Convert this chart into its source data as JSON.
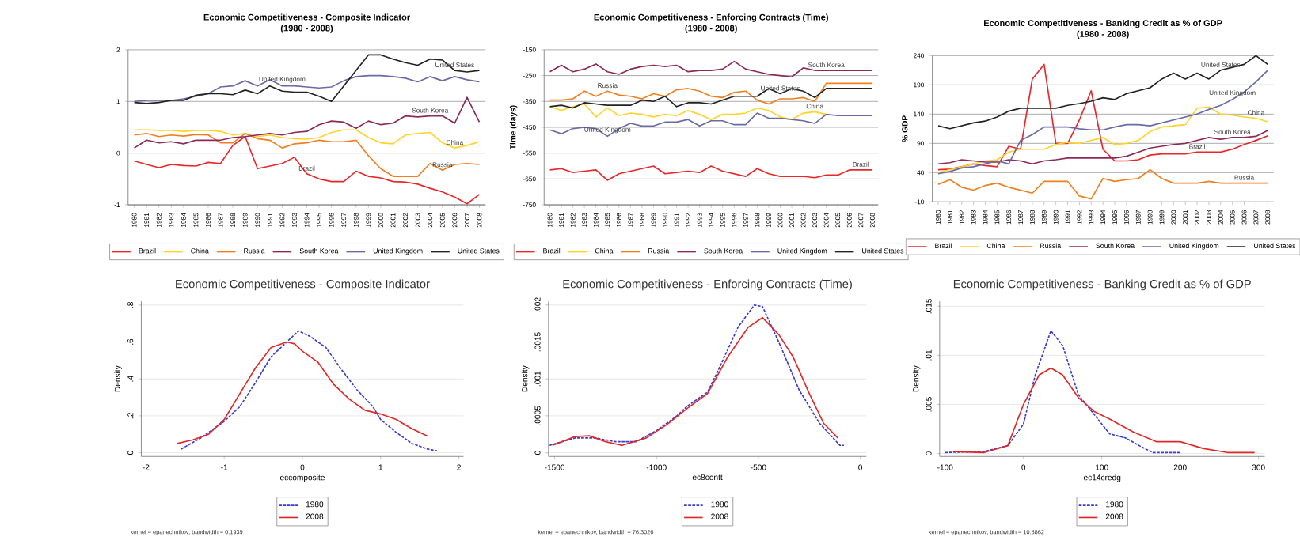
{
  "chart_data": [
    {
      "type": "line",
      "title": "Economic Competitiveness - Composite Indicator",
      "subtitle": "(1980 - 2008)",
      "categories": [
        "1980",
        "1981",
        "1982",
        "1983",
        "1984",
        "1985",
        "1986",
        "1987",
        "1988",
        "1989",
        "1990",
        "1991",
        "1992",
        "1993",
        "1994",
        "1995",
        "1996",
        "1997",
        "1998",
        "1999",
        "2000",
        "2001",
        "2002",
        "2003",
        "2004",
        "2005",
        "2006",
        "2007",
        "2008"
      ],
      "ylim": [
        -1,
        2
      ],
      "yticks": [
        -1,
        0,
        1,
        2
      ],
      "grid": "y",
      "legend": "bottom",
      "marker": "none",
      "series": [
        {
          "name": "Brazil",
          "color": "#e8272a",
          "values": [
            -0.15,
            -0.22,
            -0.28,
            -0.22,
            -0.24,
            -0.25,
            -0.18,
            -0.2,
            0.15,
            0.32,
            -0.3,
            -0.25,
            -0.2,
            -0.08,
            -0.4,
            -0.5,
            -0.55,
            -0.55,
            -0.35,
            -0.45,
            -0.48,
            -0.55,
            -0.56,
            -0.6,
            -0.68,
            -0.75,
            -0.85,
            -0.98,
            -0.8
          ]
        },
        {
          "name": "China",
          "color": "#ffd42a",
          "values": [
            0.45,
            0.45,
            0.44,
            0.44,
            0.42,
            0.44,
            0.44,
            0.42,
            0.35,
            0.38,
            0.32,
            0.35,
            0.3,
            0.28,
            0.27,
            0.3,
            0.4,
            0.45,
            0.45,
            0.3,
            0.2,
            0.18,
            0.35,
            0.38,
            0.4,
            0.2,
            0.1,
            0.15,
            0.22
          ]
        },
        {
          "name": "Russia",
          "color": "#f07f22",
          "values": [
            0.35,
            0.38,
            0.32,
            0.35,
            0.33,
            0.36,
            0.35,
            0.2,
            0.2,
            0.38,
            0.28,
            0.25,
            0.1,
            0.18,
            0.2,
            0.25,
            0.22,
            0.22,
            0.25,
            -0.05,
            -0.3,
            -0.45,
            -0.45,
            -0.45,
            -0.2,
            -0.33,
            -0.22,
            -0.2,
            -0.22
          ]
        },
        {
          "name": "South Korea",
          "color": "#8b2a5a",
          "values": [
            0.1,
            0.25,
            0.2,
            0.22,
            0.18,
            0.25,
            0.25,
            0.25,
            0.3,
            0.32,
            0.35,
            0.38,
            0.35,
            0.4,
            0.42,
            0.55,
            0.62,
            0.6,
            0.48,
            0.62,
            0.55,
            0.58,
            0.72,
            0.7,
            0.72,
            0.72,
            0.58,
            1.08,
            0.6
          ]
        },
        {
          "name": "United Kingdom",
          "color": "#6a6aa8",
          "values": [
            1.0,
            1.02,
            1.02,
            1.02,
            1.05,
            1.1,
            1.15,
            1.28,
            1.3,
            1.4,
            1.3,
            1.42,
            1.3,
            1.3,
            1.28,
            1.26,
            1.28,
            1.4,
            1.48,
            1.5,
            1.5,
            1.48,
            1.45,
            1.38,
            1.48,
            1.4,
            1.48,
            1.42,
            1.38
          ]
        },
        {
          "name": "United States",
          "color": "#222222",
          "values": [
            0.98,
            0.96,
            0.98,
            1.02,
            1.02,
            1.12,
            1.15,
            1.15,
            1.13,
            1.22,
            1.15,
            1.3,
            1.2,
            1.18,
            1.18,
            1.1,
            1.0,
            1.3,
            1.6,
            1.9,
            1.9,
            1.82,
            1.75,
            1.7,
            1.82,
            1.8,
            1.6,
            1.57,
            1.6
          ]
        }
      ],
      "annotations": [
        {
          "text": "United States",
          "x": "2006",
          "y": 1.6
        },
        {
          "text": "United Kingdom",
          "x": "1992",
          "y": 1.3
        },
        {
          "text": "South Korea",
          "x": "2004",
          "y": 0.72
        },
        {
          "text": "China",
          "x": "2006",
          "y": 0.1
        },
        {
          "text": "Russia",
          "x": "2005",
          "y": -0.33
        },
        {
          "text": "Brazil",
          "x": "1994",
          "y": -0.4
        }
      ]
    },
    {
      "type": "line",
      "title": "Economic Competitiveness - Enforcing Contracts (Time)",
      "subtitle": "(1980 - 2008)",
      "ylabel": "Time (days)",
      "categories": [
        "1980",
        "1981",
        "1982",
        "1983",
        "1984",
        "1985",
        "1986",
        "1987",
        "1988",
        "1989",
        "1990",
        "1991",
        "1992",
        "1993",
        "1994",
        "1995",
        "1996",
        "1997",
        "1998",
        "1999",
        "2000",
        "2001",
        "2002",
        "2003",
        "2004",
        "2005",
        "2006",
        "2007",
        "2008"
      ],
      "ylim": [
        -750,
        -150
      ],
      "yticks": [
        -750,
        -650,
        -550,
        -450,
        -350,
        -250,
        -150
      ],
      "grid": "y",
      "legend": "bottom",
      "marker": "none",
      "series": [
        {
          "name": "Brazil",
          "color": "#e8272a",
          "values": [
            -615,
            -610,
            -625,
            -620,
            -615,
            -655,
            -630,
            -620,
            -610,
            -600,
            -630,
            -625,
            -620,
            -625,
            -600,
            -620,
            -630,
            -640,
            -610,
            -630,
            -640,
            -640,
            -640,
            -645,
            -635,
            -635,
            -615,
            -615,
            -615
          ]
        },
        {
          "name": "China",
          "color": "#ffd42a",
          "values": [
            -370,
            -385,
            -370,
            -360,
            -410,
            -375,
            -405,
            -395,
            -400,
            -410,
            -400,
            -405,
            -385,
            -400,
            -420,
            -400,
            -400,
            -395,
            -375,
            -385,
            -410,
            -420,
            -395,
            -390,
            -400,
            null,
            null,
            null,
            null
          ]
        },
        {
          "name": "Russia",
          "color": "#f07f22",
          "values": [
            -345,
            -345,
            -340,
            -310,
            -330,
            -310,
            -325,
            -330,
            -340,
            -320,
            -330,
            -305,
            -300,
            -310,
            -330,
            -335,
            -315,
            -310,
            -345,
            -360,
            -340,
            -340,
            -335,
            -350,
            -280,
            -280,
            -280,
            -280,
            -280
          ]
        },
        {
          "name": "South Korea",
          "color": "#8b2a5a",
          "values": [
            -235,
            -210,
            -235,
            -225,
            -205,
            -235,
            -245,
            -225,
            -215,
            -210,
            -215,
            -210,
            -235,
            -230,
            -230,
            -225,
            -195,
            -225,
            -235,
            -245,
            -250,
            -255,
            -220,
            -230,
            -230,
            -230,
            -230,
            -230,
            -230
          ]
        },
        {
          "name": "United Kingdom",
          "color": "#6a6aa8",
          "values": [
            -460,
            -475,
            -455,
            -450,
            -455,
            -485,
            -455,
            -435,
            -445,
            -445,
            -430,
            -430,
            -420,
            -445,
            -425,
            -425,
            -440,
            -440,
            -395,
            -415,
            -415,
            -420,
            -425,
            -435,
            -400,
            -405,
            -405,
            -405,
            -405
          ]
        },
        {
          "name": "United States",
          "color": "#222222",
          "values": [
            -370,
            -365,
            -375,
            -355,
            -360,
            -365,
            -365,
            -365,
            -345,
            -350,
            -330,
            -370,
            -355,
            -355,
            -360,
            -345,
            -330,
            -330,
            -330,
            -300,
            -320,
            -300,
            -310,
            -335,
            -300,
            -300,
            -300,
            -300,
            -300
          ]
        }
      ],
      "annotations": [
        {
          "text": "South Korea",
          "x": "2004",
          "y": -230
        },
        {
          "text": "Russia",
          "x": "1985",
          "y": -310
        },
        {
          "text": "United States",
          "x": "2000",
          "y": -320
        },
        {
          "text": "China",
          "x": "2003",
          "y": -390
        },
        {
          "text": "United Kingdom",
          "x": "1985",
          "y": -485
        },
        {
          "text": "Brazil",
          "x": "2007",
          "y": -615
        }
      ]
    },
    {
      "type": "line",
      "title": "Economic Competitiveness - Banking Credit as % of GDP",
      "subtitle": "(1980 - 2008)",
      "ylabel": "% GDP",
      "categories": [
        "1980",
        "1981",
        "1982",
        "1983",
        "1984",
        "1985",
        "1986",
        "1987",
        "1988",
        "1989",
        "1990",
        "1991",
        "1992",
        "1993",
        "1994",
        "1995",
        "1996",
        "1997",
        "1998",
        "1999",
        "2000",
        "2001",
        "2002",
        "2003",
        "2004",
        "2005",
        "2006",
        "2007",
        "2008"
      ],
      "ylim": [
        -10,
        240
      ],
      "yticks": [
        -10,
        40,
        90,
        140,
        190,
        240
      ],
      "grid": "y",
      "legend": "bottom",
      "marker": "none",
      "series": [
        {
          "name": "Brazil",
          "color": "#e8272a",
          "values": [
            45,
            46,
            50,
            55,
            52,
            50,
            85,
            80,
            200,
            225,
            90,
            90,
            130,
            180,
            80,
            60,
            60,
            62,
            70,
            72,
            72,
            72,
            75,
            75,
            75,
            80,
            88,
            95,
            103
          ]
        },
        {
          "name": "China",
          "color": "#ffd42a",
          "values": [
            40,
            45,
            50,
            55,
            60,
            62,
            75,
            80,
            80,
            80,
            88,
            92,
            90,
            95,
            100,
            88,
            90,
            95,
            110,
            118,
            120,
            122,
            150,
            152,
            140,
            138,
            135,
            133,
            127
          ]
        },
        {
          "name": "Russia",
          "color": "#f07f22",
          "values": [
            20,
            28,
            15,
            10,
            18,
            22,
            15,
            10,
            5,
            25,
            25,
            25,
            0,
            -5,
            30,
            25,
            28,
            30,
            45,
            30,
            22,
            22,
            22,
            25,
            22,
            22,
            22,
            22,
            22
          ]
        },
        {
          "name": "South Korea",
          "color": "#8b2a5a",
          "values": [
            55,
            57,
            62,
            60,
            58,
            58,
            62,
            60,
            55,
            60,
            62,
            65,
            65,
            65,
            65,
            65,
            68,
            75,
            82,
            85,
            88,
            90,
            95,
            100,
            97,
            100,
            100,
            102,
            112
          ]
        },
        {
          "name": "United Kingdom",
          "color": "#6a6aa8",
          "values": [
            38,
            42,
            48,
            50,
            55,
            60,
            55,
            95,
            105,
            118,
            118,
            118,
            115,
            113,
            113,
            118,
            122,
            122,
            120,
            125,
            130,
            135,
            140,
            148,
            155,
            165,
            178,
            195,
            215
          ]
        },
        {
          "name": "United States",
          "color": "#222222",
          "values": [
            120,
            115,
            120,
            125,
            128,
            135,
            145,
            150,
            150,
            150,
            150,
            155,
            158,
            162,
            168,
            165,
            175,
            180,
            185,
            200,
            210,
            200,
            210,
            200,
            215,
            220,
            225,
            240,
            225
          ]
        }
      ],
      "annotations": [
        {
          "text": "United States",
          "x": "2004",
          "y": 215
        },
        {
          "text": "United Kingdom",
          "x": "2005",
          "y": 165
        },
        {
          "text": "China",
          "x": "2007",
          "y": 133
        },
        {
          "text": "South Korea",
          "x": "2005",
          "y": 100
        },
        {
          "text": "Brazil",
          "x": "2002",
          "y": 75
        },
        {
          "text": "Russia",
          "x": "2006",
          "y": 22
        }
      ]
    },
    {
      "type": "line",
      "title": "Economic Competitiveness - Composite Indicator",
      "xlabel": "eccomposite",
      "ylabel": "Density",
      "xlim": [
        -2.06,
        2.06
      ],
      "xticks": [
        -2,
        -1,
        0,
        1,
        2
      ],
      "ylim": [
        -0.02,
        0.82
      ],
      "yticks": [
        0,
        {
          "value": 0.2,
          "label": ".2"
        },
        {
          "value": 0.4,
          "label": ".4"
        },
        {
          "value": 0.6,
          "label": ".6"
        },
        {
          "value": 0.8,
          "label": ".8"
        }
      ],
      "grid": "y",
      "legend": "bottom",
      "marker": "none",
      "series": [
        {
          "name": "1980",
          "color": "#3b3bd4",
          "line_style": "dashed",
          "x": [
            -1.55,
            -1.3,
            -1.0,
            -0.8,
            -0.6,
            -0.4,
            -0.2,
            -0.05,
            0.1,
            0.3,
            0.5,
            0.7,
            0.9,
            1.0,
            1.2,
            1.4,
            1.6,
            1.72
          ],
          "values": [
            0.02,
            0.08,
            0.17,
            0.25,
            0.38,
            0.52,
            0.6,
            0.66,
            0.63,
            0.57,
            0.45,
            0.34,
            0.25,
            0.18,
            0.11,
            0.05,
            0.02,
            0.01
          ]
        },
        {
          "name": "2008",
          "color": "#e02828",
          "line_style": "solid",
          "x": [
            -1.6,
            -1.4,
            -1.2,
            -1.0,
            -0.8,
            -0.6,
            -0.4,
            -0.2,
            -0.1,
            0.0,
            0.2,
            0.4,
            0.6,
            0.8,
            1.0,
            1.2,
            1.4,
            1.6
          ],
          "values": [
            0.05,
            0.07,
            0.1,
            0.18,
            0.32,
            0.46,
            0.57,
            0.6,
            0.59,
            0.55,
            0.49,
            0.37,
            0.29,
            0.23,
            0.21,
            0.18,
            0.13,
            0.09
          ]
        }
      ],
      "annotations": [
        "kernel = epanechnikov, bandwidth = 0.1939"
      ]
    },
    {
      "type": "line",
      "title": "Economic Competitiveness - Enforcing Contracts (Time)",
      "xlabel": "ec8contt",
      "ylabel": "Density",
      "xlim": [
        -1530,
        30
      ],
      "xticks": [
        -1500,
        -1000,
        -500,
        0
      ],
      "ylim": [
        -5e-05,
        0.00205
      ],
      "yticks": [
        0,
        {
          "value": 0.0005,
          "label": ".0005"
        },
        {
          "value": 0.001,
          "label": ".001"
        },
        {
          "value": 0.0015,
          "label": ".0015"
        },
        {
          "value": 0.002,
          "label": ".002"
        }
      ],
      "grid": "y",
      "legend": "bottom",
      "marker": "none",
      "series": [
        {
          "name": "1980",
          "color": "#3b3bd4",
          "line_style": "dashed",
          "x": [
            -1525,
            -1400,
            -1300,
            -1200,
            -1100,
            -1000,
            -900,
            -850,
            -750,
            -700,
            -600,
            -520,
            -480,
            -400,
            -300,
            -200,
            -100,
            -80
          ],
          "values": [
            0.0001,
            0.0002,
            0.0002,
            0.00015,
            0.00015,
            0.0003,
            0.0005,
            0.00063,
            0.00082,
            0.0011,
            0.0017,
            0.002,
            0.00198,
            0.0015,
            0.00085,
            0.0004,
            0.0001,
            0.0001
          ]
        },
        {
          "name": "2008",
          "color": "#e02828",
          "line_style": "solid",
          "x": [
            -1510,
            -1400,
            -1330,
            -1250,
            -1170,
            -1050,
            -950,
            -850,
            -750,
            -650,
            -550,
            -480,
            -400,
            -330,
            -250,
            -180,
            -110
          ],
          "values": [
            0.0001,
            0.00022,
            0.00023,
            0.00015,
            0.0001,
            0.0002,
            0.00038,
            0.0006,
            0.0008,
            0.0013,
            0.0017,
            0.00183,
            0.0016,
            0.0013,
            0.0008,
            0.0004,
            0.0002
          ]
        }
      ],
      "annotations": [
        "kernel = epanechnikov, bandwidth = 76.3026"
      ]
    },
    {
      "type": "line",
      "title": "Economic Competitiveness - Banking Credit as % of GDP",
      "xlabel": "ec14credg",
      "ylabel": "Density",
      "xlim": [
        -107,
        308
      ],
      "xticks": [
        -100,
        0,
        100,
        200,
        300
      ],
      "ylim": [
        -0.0003,
        0.0155
      ],
      "yticks": [
        0,
        {
          "value": 0.005,
          "label": ".005"
        },
        {
          "value": 0.01,
          "label": ".01"
        },
        {
          "value": 0.015,
          "label": ".015"
        }
      ],
      "grid": "y",
      "legend": "bottom",
      "marker": "none",
      "series": [
        {
          "name": "1980",
          "color": "#3b3bd4",
          "line_style": "dashed",
          "x": [
            -100,
            -50,
            -20,
            0,
            15,
            35,
            50,
            70,
            90,
            110,
            130,
            150,
            165,
            200
          ],
          "values": [
            0.0001,
            0.0002,
            0.0008,
            0.003,
            0.008,
            0.0125,
            0.011,
            0.006,
            0.004,
            0.002,
            0.0016,
            0.0007,
            0.0001,
            0.0001
          ]
        },
        {
          "name": "2008",
          "color": "#e02828",
          "line_style": "solid",
          "x": [
            -90,
            -50,
            -20,
            0,
            20,
            35,
            50,
            70,
            90,
            110,
            140,
            170,
            200,
            230,
            260,
            295
          ],
          "values": [
            0.0002,
            0.0001,
            0.0008,
            0.005,
            0.008,
            0.0087,
            0.008,
            0.0057,
            0.0043,
            0.0035,
            0.0022,
            0.0012,
            0.0012,
            0.0005,
            0.0001,
            0.0001
          ]
        }
      ],
      "annotations": [
        "kernel = epanechnikov, bandwidth = 10.8862"
      ]
    }
  ]
}
